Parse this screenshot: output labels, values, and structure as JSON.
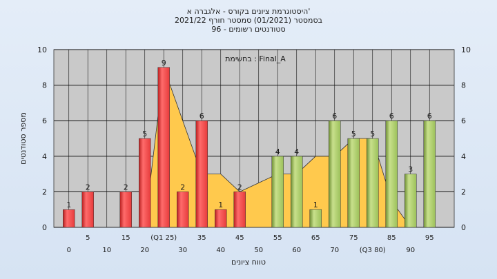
{
  "chart_data": {
    "type": "bar",
    "title_lines": [
      "היסטוגרמת ציונים בקורס - אלגברה א'",
      "בסמסטר  (01/2021)  סמסטר חורף  2021/22",
      "סטודנטים רשומים - 96"
    ],
    "annotation": "בחשימת : Final_A",
    "xlabel": "טווח ציונים",
    "ylabel": "מספר סטודנטים",
    "ylim": [
      0,
      10
    ],
    "y_ticks": [
      "0",
      "2",
      "4",
      "6",
      "8",
      "10"
    ],
    "x_ticks_upper": [
      "5",
      "15",
      "(Q1 25)",
      "35",
      "45",
      "55",
      "65",
      "75",
      "85",
      "95"
    ],
    "x_ticks_lower": [
      "0",
      "10",
      "20",
      "30",
      "40",
      "50",
      "60",
      "70",
      "(Q3 80)",
      "90"
    ],
    "grid": true,
    "categories": [
      "0",
      "5",
      "10",
      "15",
      "20",
      "25",
      "30",
      "35",
      "40",
      "45",
      "50",
      "55",
      "60",
      "65",
      "70",
      "75",
      "80",
      "85",
      "90",
      "95"
    ],
    "values": [
      1,
      2,
      0,
      2,
      5,
      9,
      2,
      6,
      1,
      2,
      0,
      4,
      4,
      1,
      6,
      5,
      5,
      6,
      3,
      6
    ],
    "data_labels": [
      "1",
      "2",
      "",
      "2",
      "5",
      "9",
      "2",
      "6",
      "1",
      "2",
      "",
      "4",
      "4",
      "1",
      "6",
      "5",
      "5",
      "6",
      "3",
      "6"
    ],
    "bar_groups": [
      "red",
      "red",
      "red",
      "red",
      "red",
      "red",
      "red",
      "red",
      "red",
      "red",
      "green",
      "green",
      "green",
      "green",
      "green",
      "green",
      "green",
      "green",
      "green",
      "green"
    ],
    "area_values": [
      0,
      0,
      0,
      0,
      0,
      9,
      6,
      3,
      3,
      2,
      2.5,
      3,
      3,
      4,
      4,
      5,
      5,
      1.5,
      0,
      0
    ],
    "colors": {
      "red_bar": "#e63b3b",
      "green_bar": "#9cc15a",
      "area": "#ffc94d",
      "plot_bg": "#c9c9c9",
      "page_bg": "#dfe8f5"
    }
  }
}
